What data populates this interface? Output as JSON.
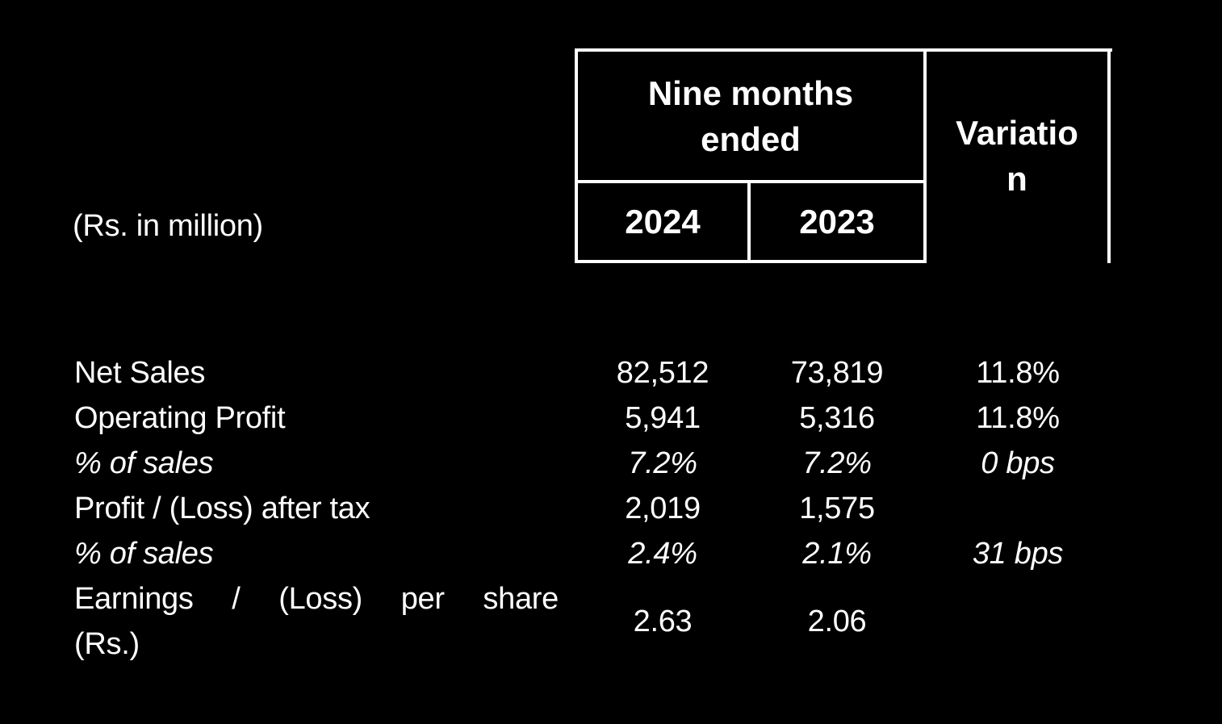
{
  "colors": {
    "background": "#000000",
    "text": "#ffffff",
    "border": "#ffffff"
  },
  "unit_label": "(Rs. in million)",
  "header": {
    "period_group": "Nine months ended",
    "year_2024": "2024",
    "year_2023": "2023",
    "variation": "Variation"
  },
  "rows": [
    {
      "label": "Net Sales",
      "y2024": "82,512",
      "y2023": "73,819",
      "variation": "11.8%"
    },
    {
      "label": "Operating Profit",
      "y2024": "5,941",
      "y2023": "5,316",
      "variation": "11.8%"
    },
    {
      "label": "% of sales",
      "y2024": "7.2%",
      "y2023": "7.2%",
      "variation": "0 bps"
    },
    {
      "label": "Profit / (Loss) after tax",
      "y2024": "2,019",
      "y2023": "1,575",
      "variation": ""
    },
    {
      "label": "% of sales",
      "y2024": "2.4%",
      "y2023": "2.1%",
      "variation": "31 bps"
    },
    {
      "label": "Earnings / (Loss) per share (Rs.)",
      "label_lines": [
        "Earnings / (Loss) per share",
        "(Rs.)"
      ],
      "y2024": "2.63",
      "y2023": "2.06",
      "variation": ""
    }
  ],
  "chart_data": {
    "type": "table",
    "title": "",
    "unit": "(Rs. in million)",
    "column_group": "Nine months ended",
    "columns": [
      "2024",
      "2023",
      "Variation"
    ],
    "rows": [
      {
        "label": "Net Sales",
        "values": [
          "82,512",
          "73,819",
          "11.8%"
        ]
      },
      {
        "label": "Operating Profit",
        "values": [
          "5,941",
          "5,316",
          "11.8%"
        ]
      },
      {
        "label": "% of sales",
        "values": [
          "7.2%",
          "7.2%",
          "0 bps"
        ]
      },
      {
        "label": "Profit / (Loss) after tax",
        "values": [
          "2,019",
          "1,575",
          ""
        ]
      },
      {
        "label": "% of sales",
        "values": [
          "2.4%",
          "2.1%",
          "31 bps"
        ]
      },
      {
        "label": "Earnings / (Loss) per share (Rs.)",
        "values": [
          "2.63",
          "2.06",
          ""
        ]
      }
    ],
    "layout": {
      "grid": "off",
      "background": "black",
      "text_color": "white"
    }
  }
}
